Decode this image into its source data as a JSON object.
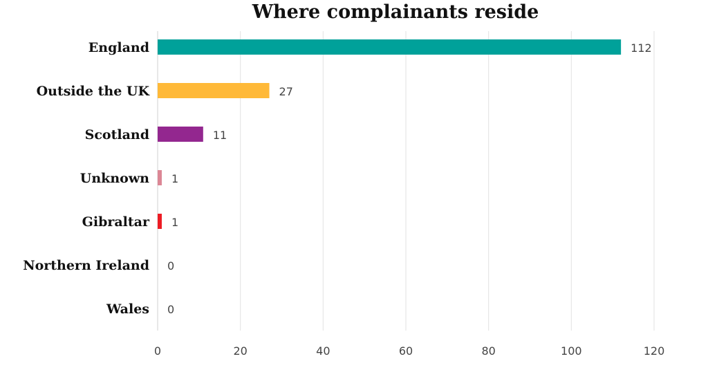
{
  "chart_data": {
    "type": "bar",
    "orientation": "horizontal",
    "title": "Where complainants reside",
    "xlabel": "",
    "ylabel": "",
    "categories": [
      "England",
      "Outside the UK",
      "Scotland",
      "Unknown",
      "Gibraltar",
      "Northern Ireland",
      "Wales"
    ],
    "values": [
      112,
      27,
      11,
      1,
      1,
      0,
      0
    ],
    "colors": [
      "#00a19a",
      "#ffb938",
      "#93278f",
      "#dc8795",
      "#ed1c24",
      "#cccccc",
      "#cccccc"
    ],
    "xlim": [
      0,
      120
    ],
    "xticks": [
      0,
      20,
      40,
      60,
      80,
      100,
      120
    ],
    "grid": true,
    "legend": "none",
    "data_labels": true
  }
}
